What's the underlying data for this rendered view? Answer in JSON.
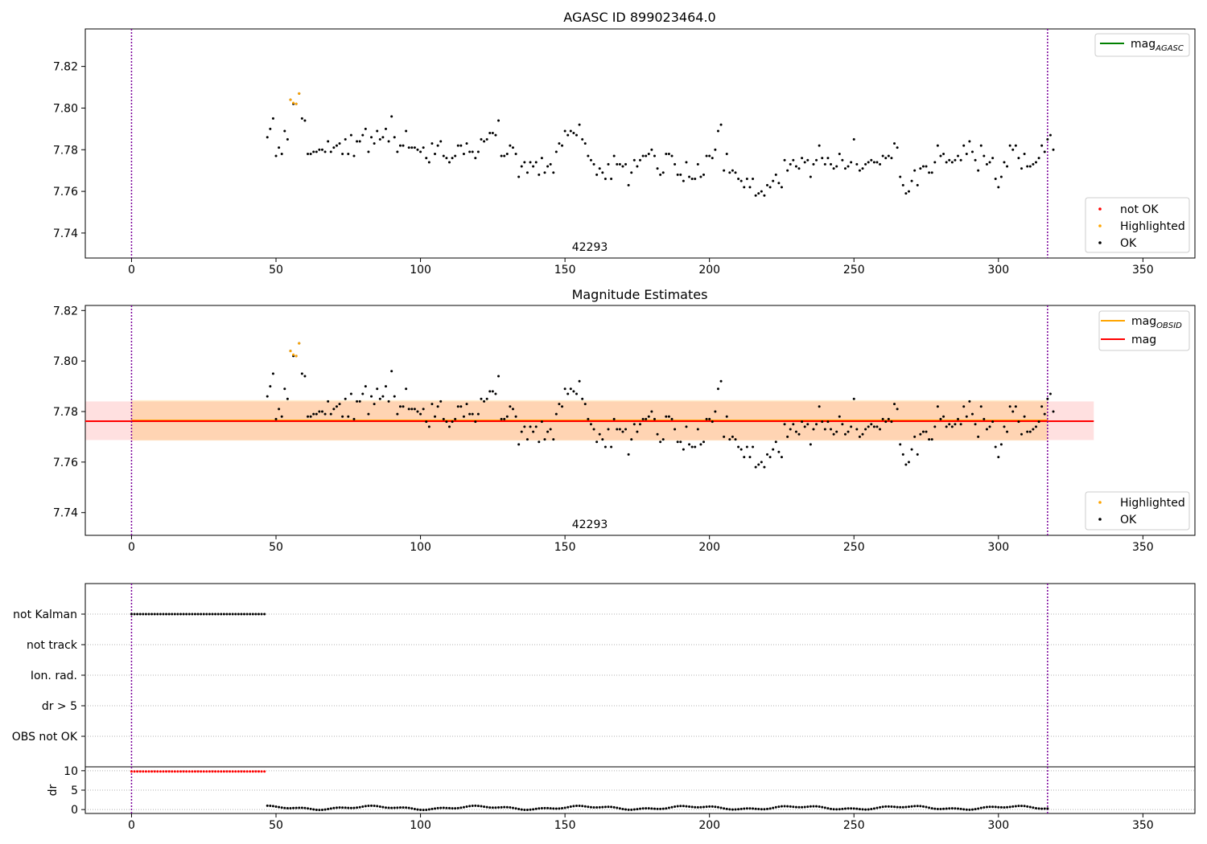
{
  "chart_data": [
    {
      "type": "scatter",
      "title": "AGASC ID 899023464.0",
      "annotation": "42293",
      "xlim": [
        -16,
        368
      ],
      "ylim": [
        7.728,
        7.838
      ],
      "xticks": [
        0,
        50,
        100,
        150,
        200,
        250,
        300,
        350
      ],
      "yticks": [
        7.74,
        7.76,
        7.78,
        7.8,
        7.82
      ],
      "ytick_labels": [
        "7.74",
        "7.76",
        "7.78",
        "7.80",
        "7.82"
      ],
      "vlines": [
        0,
        317
      ],
      "legend_upper": [
        {
          "label": "mag",
          "subscript": "AGASC",
          "color": "#008000"
        }
      ],
      "legend_lower": [
        {
          "label": "not OK",
          "color": "#ff0000"
        },
        {
          "label": "Highlighted",
          "color": "#ffa500"
        },
        {
          "label": "OK",
          "color": "#000000"
        }
      ],
      "series": [
        {
          "name": "Highlighted",
          "color": "#ffa500",
          "x": [
            55,
            56,
            57,
            58
          ],
          "y": [
            7.804,
            7.8025,
            7.802,
            7.807
          ]
        },
        {
          "name": "OK",
          "color": "#000000",
          "x_start": 47,
          "x_step": 1,
          "y": [
            7.786,
            7.79,
            7.795,
            7.777,
            7.781,
            7.778,
            7.789,
            7.785,
            7.804,
            7.802,
            7.802,
            7.807,
            7.795,
            7.794,
            7.778,
            7.778,
            7.779,
            7.779,
            7.78,
            7.78,
            7.779,
            7.784,
            7.779,
            7.781,
            7.782,
            7.783,
            7.778,
            7.785,
            7.778,
            7.787,
            7.777,
            7.784,
            7.784,
            7.787,
            7.79,
            7.779,
            7.786,
            7.783,
            7.789,
            7.785,
            7.786,
            7.79,
            7.784,
            7.796,
            7.786,
            7.779,
            7.782,
            7.782,
            7.789,
            7.781,
            7.781,
            7.781,
            7.78,
            7.779,
            7.781,
            7.776,
            7.774,
            7.783,
            7.778,
            7.782,
            7.784,
            7.777,
            7.776,
            7.774,
            7.776,
            7.777,
            7.782,
            7.782,
            7.778,
            7.783,
            7.779,
            7.779,
            7.776,
            7.779,
            7.785,
            7.784,
            7.785,
            7.788,
            7.788,
            7.787,
            7.794,
            7.777,
            7.777,
            7.778,
            7.782,
            7.781,
            7.778,
            7.767,
            7.772,
            7.774,
            7.769,
            7.774,
            7.772,
            7.774,
            7.768,
            7.776,
            7.769,
            7.772,
            7.773,
            7.769,
            7.779,
            7.783,
            7.782,
            7.789,
            7.787,
            7.789,
            7.788,
            7.787,
            7.792,
            7.785,
            7.783,
            7.777,
            7.775,
            7.773,
            7.768,
            7.771,
            7.769,
            7.766,
            7.773,
            7.766,
            7.777,
            7.773,
            7.773,
            7.772,
            7.773,
            7.763,
            7.769,
            7.775,
            7.772,
            7.775,
            7.777,
            7.777,
            7.778,
            7.78,
            7.777,
            7.771,
            7.768,
            7.769,
            7.778,
            7.778,
            7.777,
            7.773,
            7.768,
            7.768,
            7.765,
            7.774,
            7.767,
            7.766,
            7.766,
            7.773,
            7.767,
            7.768,
            7.777,
            7.777,
            7.776,
            7.78,
            7.789,
            7.792,
            7.77,
            7.778,
            7.769,
            7.77,
            7.769,
            7.766,
            7.765,
            7.762,
            7.766,
            7.762,
            7.766,
            7.758,
            7.759,
            7.76,
            7.758,
            7.763,
            7.762,
            7.765,
            7.768,
            7.764,
            7.762,
            7.775,
            7.77,
            7.773,
            7.775,
            7.772,
            7.771,
            7.776,
            7.774,
            7.775,
            7.767,
            7.773,
            7.775,
            7.782,
            7.776,
            7.773,
            7.776,
            7.773,
            7.771,
            7.772,
            7.778,
            7.775,
            7.771,
            7.772,
            7.774,
            7.785,
            7.773,
            7.77,
            7.771,
            7.773,
            7.774,
            7.775,
            7.774,
            7.774,
            7.773,
            7.777,
            7.776,
            7.777,
            7.776,
            7.783,
            7.781,
            7.767,
            7.763,
            7.759,
            7.76,
            7.765,
            7.77,
            7.763,
            7.771,
            7.772,
            7.772,
            7.769,
            7.769,
            7.774,
            7.782,
            7.777,
            7.778,
            7.774,
            7.775,
            7.774,
            7.775,
            7.777,
            7.775,
            7.782,
            7.778,
            7.784,
            7.779,
            7.775,
            7.77,
            7.782,
            7.777,
            7.773,
            7.774,
            7.776,
            7.766,
            7.762,
            7.767,
            7.774,
            7.772,
            7.782,
            7.78,
            7.782,
            7.776,
            7.771,
            7.778,
            7.772,
            7.772,
            7.773,
            7.774,
            7.776,
            7.782,
            7.779,
            7.785,
            7.787,
            7.78
          ]
        }
      ]
    },
    {
      "type": "scatter",
      "title": "Magnitude Estimates",
      "annotation": "42293",
      "xlim": [
        -16,
        368
      ],
      "ylim": [
        7.731,
        7.822
      ],
      "xticks": [
        0,
        50,
        100,
        150,
        200,
        250,
        300,
        350
      ],
      "yticks": [
        7.74,
        7.76,
        7.78,
        7.8,
        7.82
      ],
      "ytick_labels": [
        "7.74",
        "7.76",
        "7.78",
        "7.80",
        "7.82"
      ],
      "vlines": [
        0,
        317
      ],
      "mag_obsid": {
        "value": 7.7765,
        "low": 7.7685,
        "high": 7.7845,
        "x": [
          0,
          317
        ],
        "color": "#ffa500"
      },
      "mag": {
        "value": 7.7762,
        "low": 7.7687,
        "high": 7.784,
        "x": [
          -16,
          333
        ],
        "color": "#ff0000"
      },
      "legend_upper": [
        {
          "label": "mag",
          "subscript": "OBSID",
          "color": "#ffa500"
        },
        {
          "label": "mag",
          "subscript": "",
          "color": "#ff0000"
        }
      ],
      "legend_lower": [
        {
          "label": "Highlighted",
          "color": "#ffa500"
        },
        {
          "label": "OK",
          "color": "#000000"
        }
      ]
    },
    {
      "type": "scatter",
      "categories": [
        "not Kalman",
        "not track",
        "Ion. rad.",
        "dr > 5",
        "OBS not OK"
      ],
      "xlim": [
        -16,
        368
      ],
      "vlines": [
        0,
        317
      ],
      "not_kalman_x": [
        0,
        46
      ],
      "dr_panel": {
        "ylabel": "dr",
        "ylim": [
          -1,
          11
        ],
        "yticks": [
          0,
          5,
          10
        ],
        "xticks": [
          0,
          50,
          100,
          150,
          200,
          250,
          300,
          350
        ],
        "red_x": [
          0,
          46
        ],
        "red_y": 9.8,
        "black_x": [
          47,
          317
        ]
      }
    }
  ]
}
